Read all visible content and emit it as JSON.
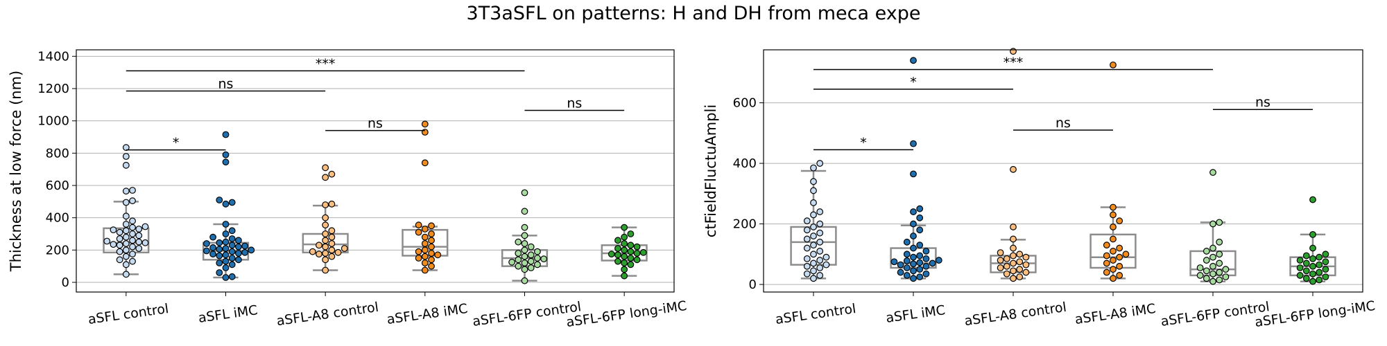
{
  "figure": {
    "title": "3T3aSFL on patterns: H and DH from meca expe"
  },
  "chart_data": [
    {
      "type": "box+swarm",
      "ylabel": "Thickness at low force (nm)",
      "ylim": [
        -60,
        1440
      ],
      "yticks": [
        0,
        200,
        400,
        600,
        800,
        1000,
        1200,
        1400
      ],
      "grid": true,
      "categories": [
        "aSFL control",
        "aSFL iMC",
        "aSFL-A8 control",
        "aSFL-A8 iMC",
        "aSFL-6FP control",
        "aSFL-6FP long-iMC"
      ],
      "colors": [
        "#c6dbef",
        "#1f6fae",
        "#fdbf80",
        "#f28c1f",
        "#a8dba0",
        "#2ca02c"
      ],
      "boxes": [
        {
          "whislo": 50,
          "q1": 185,
          "med": 245,
          "q3": 335,
          "whishi": 500
        },
        {
          "whislo": 30,
          "q1": 140,
          "med": 195,
          "q3": 245,
          "whishi": 360
        },
        {
          "whislo": 75,
          "q1": 185,
          "med": 235,
          "q3": 300,
          "whishi": 475
        },
        {
          "whislo": 75,
          "q1": 165,
          "med": 220,
          "q3": 325,
          "whishi": 345
        },
        {
          "whislo": 10,
          "q1": 100,
          "med": 150,
          "q3": 200,
          "whishi": 290
        },
        {
          "whislo": 40,
          "q1": 135,
          "med": 180,
          "q3": 230,
          "whishi": 340
        }
      ],
      "points": [
        [
          835,
          780,
          725,
          570,
          565,
          505,
          495,
          410,
          380,
          360,
          345,
          340,
          330,
          325,
          320,
          310,
          300,
          290,
          280,
          270,
          260,
          255,
          250,
          245,
          240,
          235,
          230,
          220,
          210,
          200,
          190,
          175,
          160,
          140,
          130,
          110,
          50
        ],
        [
          915,
          790,
          745,
          510,
          495,
          485,
          360,
          320,
          300,
          280,
          270,
          260,
          250,
          245,
          240,
          230,
          225,
          220,
          215,
          210,
          205,
          200,
          195,
          190,
          185,
          180,
          175,
          170,
          165,
          150,
          140,
          130,
          120,
          110,
          90,
          60,
          35,
          30
        ],
        [
          710,
          670,
          650,
          485,
          480,
          400,
          355,
          320,
          300,
          280,
          260,
          240,
          230,
          220,
          210,
          200,
          190,
          185,
          180,
          175,
          160,
          140,
          75
        ],
        [
          980,
          930,
          740,
          355,
          350,
          330,
          310,
          300,
          280,
          260,
          240,
          220,
          200,
          190,
          180,
          170,
          160,
          150,
          140,
          120,
          100,
          75
        ],
        [
          555,
          440,
          340,
          290,
          250,
          240,
          220,
          200,
          190,
          180,
          170,
          160,
          150,
          145,
          140,
          130,
          125,
          120,
          110,
          100,
          90,
          80,
          10
        ],
        [
          340,
          300,
          280,
          260,
          240,
          230,
          220,
          210,
          200,
          190,
          185,
          180,
          175,
          170,
          160,
          150,
          140,
          130,
          120,
          110,
          80,
          40
        ]
      ],
      "annotations": [
        {
          "from": 0,
          "to": 1,
          "y": 820,
          "label": "*"
        },
        {
          "from": 2,
          "to": 3,
          "y": 940,
          "label": "ns"
        },
        {
          "from": 4,
          "to": 5,
          "y": 1065,
          "label": "ns"
        },
        {
          "from": 0,
          "to": 2,
          "y": 1185,
          "label": "ns"
        },
        {
          "from": 0,
          "to": 4,
          "y": 1310,
          "label": "***"
        }
      ]
    },
    {
      "type": "box+swarm",
      "ylabel": "ctFieldFluctuAmpli",
      "ylim": [
        -25,
        775
      ],
      "yticks": [
        0,
        200,
        400,
        600
      ],
      "grid": true,
      "categories": [
        "aSFL control",
        "aSFL iMC",
        "aSFL-A8 control",
        "aSFL-A8 iMC",
        "aSFL-6FP control",
        "aSFL-6FP long-iMC"
      ],
      "colors": [
        "#c6dbef",
        "#1f6fae",
        "#fdbf80",
        "#f28c1f",
        "#a8dba0",
        "#2ca02c"
      ],
      "boxes": [
        {
          "whislo": 20,
          "q1": 65,
          "med": 140,
          "q3": 190,
          "whishi": 375
        },
        {
          "whislo": 20,
          "q1": 55,
          "med": 70,
          "q3": 120,
          "whishi": 195
        },
        {
          "whislo": 20,
          "q1": 40,
          "med": 70,
          "q3": 95,
          "whishi": 148
        },
        {
          "whislo": 20,
          "q1": 55,
          "med": 90,
          "q3": 165,
          "whishi": 255
        },
        {
          "whislo": 10,
          "q1": 30,
          "med": 50,
          "q3": 110,
          "whishi": 205
        },
        {
          "whislo": 10,
          "q1": 30,
          "med": 60,
          "q3": 90,
          "whishi": 165
        }
      ],
      "points": [
        [
          400,
          385,
          340,
          310,
          270,
          240,
          230,
          210,
          200,
          190,
          180,
          170,
          160,
          150,
          140,
          130,
          120,
          110,
          100,
          90,
          85,
          80,
          70,
          65,
          60,
          55,
          45,
          35,
          30,
          20
        ],
        [
          740,
          465,
          365,
          250,
          240,
          220,
          200,
          180,
          160,
          140,
          130,
          120,
          110,
          100,
          95,
          90,
          85,
          80,
          78,
          75,
          72,
          70,
          68,
          65,
          60,
          55,
          50,
          45,
          40,
          35,
          30,
          25,
          20
        ],
        [
          770,
          380,
          190,
          150,
          120,
          105,
          100,
          95,
          90,
          85,
          80,
          75,
          70,
          65,
          60,
          55,
          50,
          45,
          40,
          35,
          25,
          20
        ],
        [
          725,
          255,
          230,
          210,
          190,
          150,
          130,
          120,
          110,
          100,
          95,
          90,
          80,
          70,
          60,
          50,
          40,
          30,
          20
        ],
        [
          370,
          205,
          200,
          140,
          120,
          110,
          100,
          90,
          80,
          70,
          60,
          55,
          50,
          45,
          40,
          35,
          30,
          25,
          20,
          15,
          10
        ],
        [
          280,
          165,
          120,
          100,
          95,
          90,
          85,
          80,
          75,
          70,
          65,
          60,
          55,
          50,
          45,
          40,
          35,
          30,
          25,
          20,
          15,
          10
        ]
      ],
      "annotations": [
        {
          "from": 0,
          "to": 1,
          "y": 445,
          "label": "*"
        },
        {
          "from": 2,
          "to": 3,
          "y": 510,
          "label": "ns"
        },
        {
          "from": 4,
          "to": 5,
          "y": 578,
          "label": "ns"
        },
        {
          "from": 0,
          "to": 2,
          "y": 645,
          "label": "*"
        },
        {
          "from": 0,
          "to": 4,
          "y": 710,
          "label": "***"
        }
      ]
    }
  ]
}
